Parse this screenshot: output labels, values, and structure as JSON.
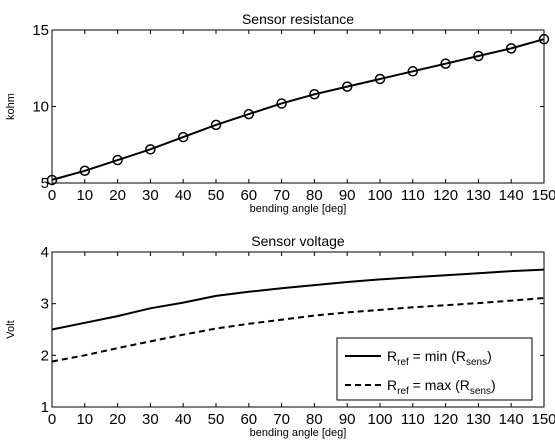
{
  "chart_data": [
    {
      "type": "line",
      "title": "Sensor resistance",
      "xlabel": "bending angle  [deg]",
      "ylabel": "kohm",
      "xlim": [
        0,
        150
      ],
      "ylim": [
        5,
        15
      ],
      "xticks": [
        0,
        10,
        20,
        30,
        40,
        50,
        60,
        70,
        80,
        90,
        100,
        110,
        120,
        130,
        140,
        150
      ],
      "yticks": [
        5,
        10,
        15
      ],
      "grid": false,
      "x": [
        0,
        10,
        20,
        30,
        40,
        50,
        60,
        70,
        80,
        90,
        100,
        110,
        120,
        130,
        140,
        150
      ],
      "series": [
        {
          "values": [
            5.2,
            5.8,
            6.5,
            7.2,
            8.0,
            8.8,
            9.5,
            10.2,
            10.8,
            11.3,
            11.8,
            12.3,
            12.8,
            13.3,
            13.8,
            14.4
          ],
          "line": "solid",
          "marker": "circle",
          "color": "#000000"
        }
      ]
    },
    {
      "type": "line",
      "title": "Sensor voltage",
      "xlabel": "bending angle  [deg]",
      "ylabel": "Volt",
      "xlim": [
        0,
        150
      ],
      "ylim": [
        1,
        4
      ],
      "xticks": [
        0,
        10,
        20,
        30,
        40,
        50,
        60,
        70,
        80,
        90,
        100,
        110,
        120,
        130,
        140,
        150
      ],
      "yticks": [
        1,
        2,
        3,
        4
      ],
      "grid": false,
      "legend_position": "bottom-right",
      "x": [
        0,
        10,
        20,
        30,
        40,
        50,
        60,
        70,
        80,
        90,
        100,
        110,
        120,
        130,
        140,
        150
      ],
      "series": [
        {
          "name_parts": {
            "base": "R",
            "sub": "ref",
            "mid": " = min (R",
            "sub2": "sens",
            "end": ")"
          },
          "values": [
            2.5,
            2.63,
            2.76,
            2.91,
            3.02,
            3.15,
            3.23,
            3.3,
            3.36,
            3.42,
            3.47,
            3.51,
            3.55,
            3.59,
            3.63,
            3.66
          ],
          "line": "solid",
          "color": "#000000"
        },
        {
          "name_parts": {
            "base": "R",
            "sub": "ref",
            "mid": " = max (R",
            "sub2": "sens",
            "end": ")"
          },
          "values": [
            1.88,
            2.0,
            2.14,
            2.27,
            2.4,
            2.52,
            2.61,
            2.69,
            2.77,
            2.83,
            2.88,
            2.93,
            2.97,
            3.01,
            3.06,
            3.11
          ],
          "line": "dashed",
          "color": "#000000"
        }
      ]
    }
  ]
}
